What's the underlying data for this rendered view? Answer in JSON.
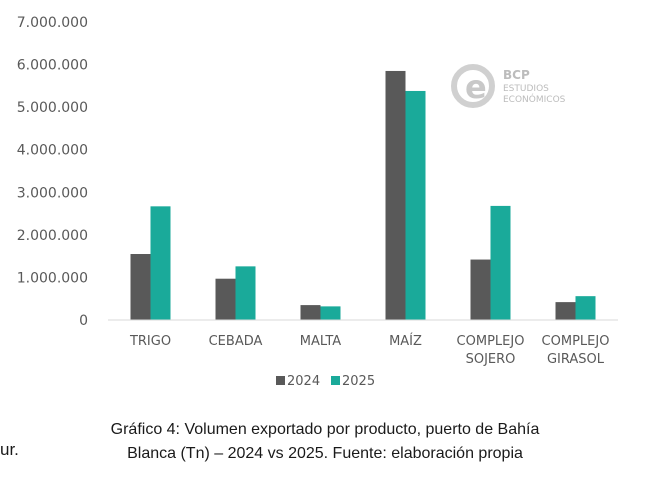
{
  "chart_data": {
    "type": "bar",
    "categories": [
      [
        "TRIGO"
      ],
      [
        "CEBADA"
      ],
      [
        "MALTA"
      ],
      [
        "MAÍZ"
      ],
      [
        "COMPLEJO",
        "SOJERO"
      ],
      [
        "COMPLEJO",
        "GIRASOL"
      ]
    ],
    "series": [
      {
        "name": "2024",
        "color": "#595959",
        "values": [
          1550000,
          970000,
          350000,
          5850000,
          1420000,
          420000
        ]
      },
      {
        "name": "2025",
        "color": "#1aaa9a",
        "values": [
          2670000,
          1260000,
          320000,
          5380000,
          2680000,
          560000
        ]
      }
    ],
    "y_ticks": [
      "0",
      "1.000.000",
      "2.000.000",
      "3.000.000",
      "4.000.000",
      "5.000.000",
      "6.000.000",
      "7.000.000"
    ],
    "ylim": [
      0,
      7000000
    ],
    "grid": false,
    "legend_position": "bottom"
  },
  "logo": {
    "mark": "e",
    "line1": "BCP",
    "line2": "ESTUDIOS",
    "line3": "ECONÓMICOS"
  },
  "caption": {
    "line1": "Gráfico 4: Volumen exportado por producto, puerto de Bahía",
    "line2": "Blanca (Tn) – 2024 vs 2025. Fuente: elaboración propia"
  },
  "fragment_text": "ur."
}
